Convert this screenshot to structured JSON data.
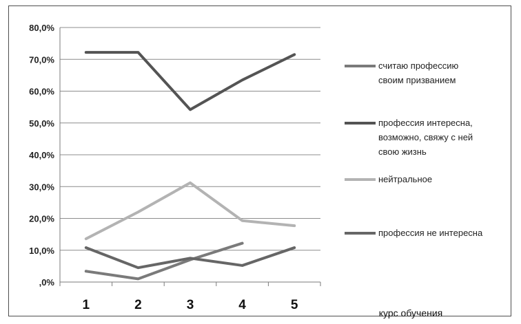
{
  "chart_data": {
    "type": "line",
    "categories": [
      "1",
      "2",
      "3",
      "4",
      "5"
    ],
    "xlabel": "курс обучения",
    "ylabel": "",
    "ylim": [
      0,
      80
    ],
    "yticks": [
      0,
      10,
      20,
      30,
      40,
      50,
      60,
      70,
      80
    ],
    "ytick_labels": [
      ",0%",
      "10,0%",
      "20,0%",
      "30,0%",
      "40,0%",
      "50,0%",
      "60,0%",
      "70,0%",
      "80,0%"
    ],
    "grid": "horizontal",
    "legend_position": "right",
    "series": [
      {
        "name": "считаю профессию своим призванием",
        "legend_lines": [
          "считаю профессию",
          "своим призванием"
        ],
        "color": "#7a7a7a",
        "values": [
          3.4,
          1.0,
          7.0,
          12.2,
          null
        ]
      },
      {
        "name": "профессия интересна, возможно, свяжу с ней свою жизнь",
        "legend_lines": [
          "профессия интересна,",
          "возможно, свяжу с ней",
          "свою жизнь"
        ],
        "color": "#545454",
        "values": [
          72.2,
          72.2,
          54.2,
          63.5,
          71.5
        ]
      },
      {
        "name": "нейтральное",
        "legend_lines": [
          "нейтральное"
        ],
        "color": "#b3b3b3",
        "values": [
          13.6,
          22.0,
          31.2,
          19.3,
          17.7
        ]
      },
      {
        "name": "профессия не интересна",
        "legend_lines": [
          "профессия не интересна"
        ],
        "color": "#666666",
        "values": [
          10.8,
          4.5,
          7.5,
          5.2,
          10.8
        ]
      }
    ]
  }
}
